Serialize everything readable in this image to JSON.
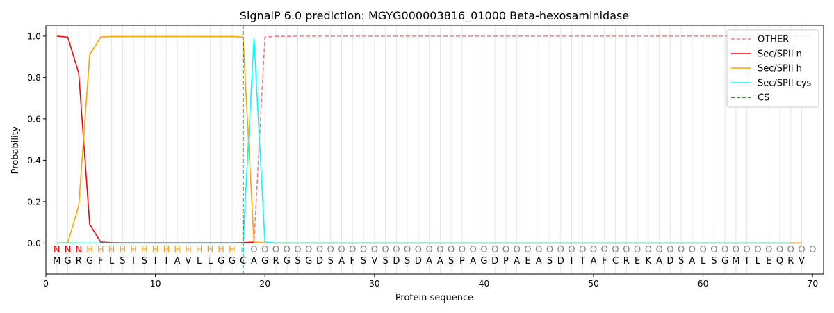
{
  "chart_data": {
    "type": "line",
    "title": "SignalP 6.0 prediction: MGYG000003816_01000 Beta-hexosaminidase",
    "xlabel": "Protein sequence",
    "ylabel": "Probability",
    "xlim": [
      0,
      71
    ],
    "ylim": [
      -0.15,
      1.05
    ],
    "xticks": [
      0,
      10,
      20,
      30,
      40,
      50,
      60,
      70
    ],
    "yticks": [
      0.0,
      0.2,
      0.4,
      0.6,
      0.8,
      1.0
    ],
    "ytick_labels": [
      "0.0",
      "0.2",
      "0.4",
      "0.6",
      "0.8",
      "1.0"
    ],
    "grid": "vertical lines at each residue",
    "legend_position": "top-right",
    "sequence": [
      "M",
      "G",
      "R",
      "G",
      "F",
      "L",
      "S",
      "I",
      "S",
      "I",
      "I",
      "A",
      "V",
      "L",
      "L",
      "G",
      "G",
      "C",
      "A",
      "G",
      "R",
      "G",
      "S",
      "G",
      "D",
      "S",
      "A",
      "F",
      "S",
      "V",
      "S",
      "D",
      "S",
      "D",
      "A",
      "A",
      "S",
      "P",
      "A",
      "G",
      "D",
      "P",
      "A",
      "E",
      "A",
      "S",
      "D",
      "I",
      "T",
      "A",
      "F",
      "C",
      "R",
      "E",
      "K",
      "A",
      "D",
      "S",
      "A",
      "L",
      "S",
      "G",
      "M",
      "T",
      "L",
      "E",
      "Q",
      "R",
      "V"
    ],
    "annotation": [
      "N",
      "N",
      "N",
      "H",
      "H",
      "H",
      "H",
      "H",
      "H",
      "H",
      "H",
      "H",
      "H",
      "H",
      "H",
      "H",
      "H",
      "c",
      "O",
      "O",
      "O",
      "O",
      "O",
      "O",
      "O",
      "O",
      "O",
      "O",
      "O",
      "O",
      "O",
      "O",
      "O",
      "O",
      "O",
      "O",
      "O",
      "O",
      "O",
      "O",
      "O",
      "O",
      "O",
      "O",
      "O",
      "O",
      "O",
      "O",
      "O",
      "O",
      "O",
      "O",
      "O",
      "O",
      "O",
      "O",
      "O",
      "O",
      "O",
      "O",
      "O",
      "O",
      "O",
      "O",
      "O",
      "O",
      "O",
      "O",
      "O",
      "O"
    ],
    "annotation_colors": {
      "N": "#ff0000",
      "H": "#ffa500",
      "c": "#00ffff",
      "O": "#808080"
    },
    "cleavage_site": 18,
    "series": [
      {
        "name": "OTHER",
        "color": "#f08080",
        "dash": true,
        "values": [
          0,
          0,
          0,
          0,
          0,
          0,
          0,
          0,
          0,
          0,
          0,
          0,
          0,
          0,
          0,
          0,
          0,
          0,
          0,
          0.995,
          0.999,
          0.999,
          1,
          1,
          1,
          1,
          1,
          1,
          1,
          1,
          1,
          1,
          1,
          1,
          1,
          1,
          1,
          1,
          1,
          1,
          1,
          1,
          1,
          1,
          1,
          1,
          1,
          1,
          1,
          1,
          1,
          1,
          1,
          1,
          1,
          1,
          1,
          1,
          1,
          1,
          1,
          1,
          1,
          1,
          1,
          1,
          1,
          1,
          1,
          1
        ]
      },
      {
        "name": "Sec/SPII n",
        "color": "#ff0000",
        "dash": false,
        "values": [
          1.0,
          0.995,
          0.82,
          0.09,
          0.005,
          0.002,
          0.001,
          0.001,
          0.001,
          0.001,
          0.001,
          0.001,
          0.001,
          0.001,
          0.001,
          0.001,
          0.001,
          0.002,
          0.004,
          0,
          0,
          0,
          0,
          0,
          0,
          0,
          0,
          0,
          0,
          0,
          0,
          0,
          0,
          0,
          0,
          0,
          0,
          0,
          0,
          0,
          0,
          0,
          0,
          0,
          0,
          0,
          0,
          0,
          0,
          0,
          0,
          0,
          0,
          0,
          0,
          0,
          0,
          0,
          0,
          0,
          0,
          0,
          0,
          0,
          0,
          0,
          0,
          0,
          0
        ]
      },
      {
        "name": "Sec/SPII h",
        "color": "#ffa500",
        "dash": false,
        "values": [
          0,
          0.002,
          0.18,
          0.91,
          0.995,
          0.998,
          0.998,
          0.998,
          0.998,
          0.998,
          0.998,
          0.998,
          0.998,
          0.998,
          0.998,
          0.998,
          0.998,
          0.995,
          0.003,
          0.001,
          0,
          0,
          0,
          0,
          0,
          0,
          0,
          0,
          0,
          0,
          0,
          0,
          0,
          0,
          0,
          0,
          0,
          0,
          0,
          0,
          0,
          0,
          0,
          0,
          0,
          0,
          0,
          0,
          0,
          0,
          0,
          0,
          0,
          0,
          0,
          0,
          0,
          0,
          0,
          0,
          0,
          0,
          0,
          0,
          0,
          0,
          0,
          0,
          0
        ]
      },
      {
        "name": "Sec/SPII cys",
        "color": "#00ffff",
        "dash": false,
        "values": [
          0,
          0,
          0,
          0,
          0,
          0,
          0,
          0,
          0,
          0,
          0,
          0,
          0,
          0,
          0,
          0,
          0,
          0,
          0.99,
          0.005,
          0,
          0,
          0,
          0,
          0,
          0,
          0,
          0,
          0,
          0,
          0,
          0,
          0,
          0,
          0,
          0,
          0,
          0,
          0,
          0,
          0,
          0,
          0,
          0,
          0,
          0,
          0,
          0,
          0,
          0,
          0,
          0,
          0,
          0,
          0,
          0,
          0,
          0,
          0,
          0,
          0,
          0,
          0,
          0,
          0,
          0,
          0,
          0
        ]
      }
    ],
    "legend": [
      {
        "label": "OTHER",
        "color": "#f08080",
        "dash": true
      },
      {
        "label": "Sec/SPII n",
        "color": "#ff0000",
        "dash": false
      },
      {
        "label": "Sec/SPII h",
        "color": "#ffa500",
        "dash": false
      },
      {
        "label": "Sec/SPII cys",
        "color": "#00ffff",
        "dash": false
      },
      {
        "label": "CS",
        "color": "#006400",
        "dash": true
      }
    ]
  }
}
